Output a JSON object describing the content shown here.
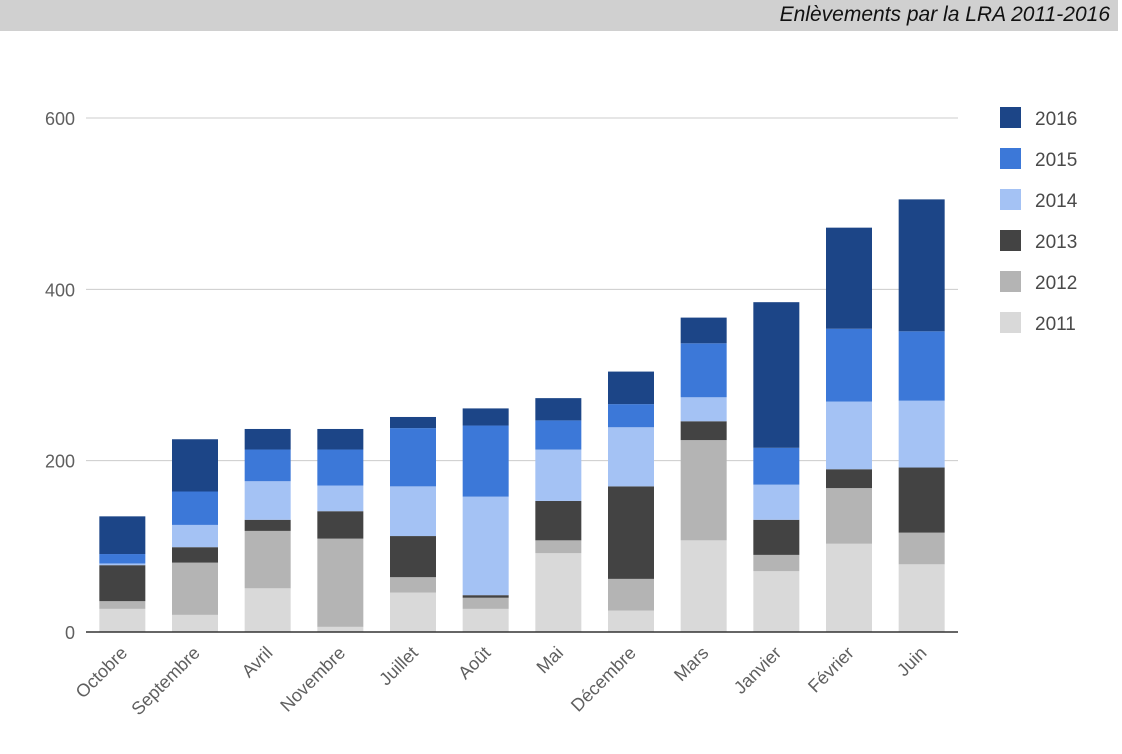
{
  "header": {
    "title": "Enlèvements par la LRA 2011-2016"
  },
  "chart_data": {
    "type": "bar",
    "stacked": true,
    "title": "Enlèvements par la LRA 2011-2016",
    "xlabel": "",
    "ylabel": "",
    "ylim": [
      0,
      600
    ],
    "yticks": [
      0,
      200,
      400,
      600
    ],
    "grid": true,
    "legend_position": "right",
    "categories": [
      "Octobre",
      "Septembre",
      "Avril",
      "Novembre",
      "Juillet",
      "Août",
      "Mai",
      "Décembre",
      "Mars",
      "Janvier",
      "Février",
      "Juin"
    ],
    "series": [
      {
        "name": "2011",
        "color": "#d9d9d9",
        "values": [
          27,
          20,
          51,
          6,
          46,
          27,
          92,
          25,
          107,
          71,
          103,
          79
        ]
      },
      {
        "name": "2012",
        "color": "#b4b4b4",
        "values": [
          9,
          61,
          67,
          103,
          18,
          13,
          15,
          37,
          117,
          19,
          65,
          37
        ]
      },
      {
        "name": "2013",
        "color": "#434343",
        "values": [
          42,
          18,
          13,
          32,
          48,
          3,
          46,
          108,
          22,
          41,
          22,
          76
        ]
      },
      {
        "name": "2014",
        "color": "#a4c2f4",
        "values": [
          2,
          26,
          45,
          30,
          58,
          115,
          60,
          69,
          28,
          41,
          79,
          78
        ]
      },
      {
        "name": "2015",
        "color": "#3c78d8",
        "values": [
          11,
          39,
          37,
          42,
          68,
          83,
          34,
          27,
          63,
          43,
          85,
          81
        ]
      },
      {
        "name": "2016",
        "color": "#1c4587",
        "values": [
          44,
          61,
          24,
          24,
          13,
          20,
          26,
          38,
          30,
          170,
          118,
          154
        ]
      }
    ]
  }
}
